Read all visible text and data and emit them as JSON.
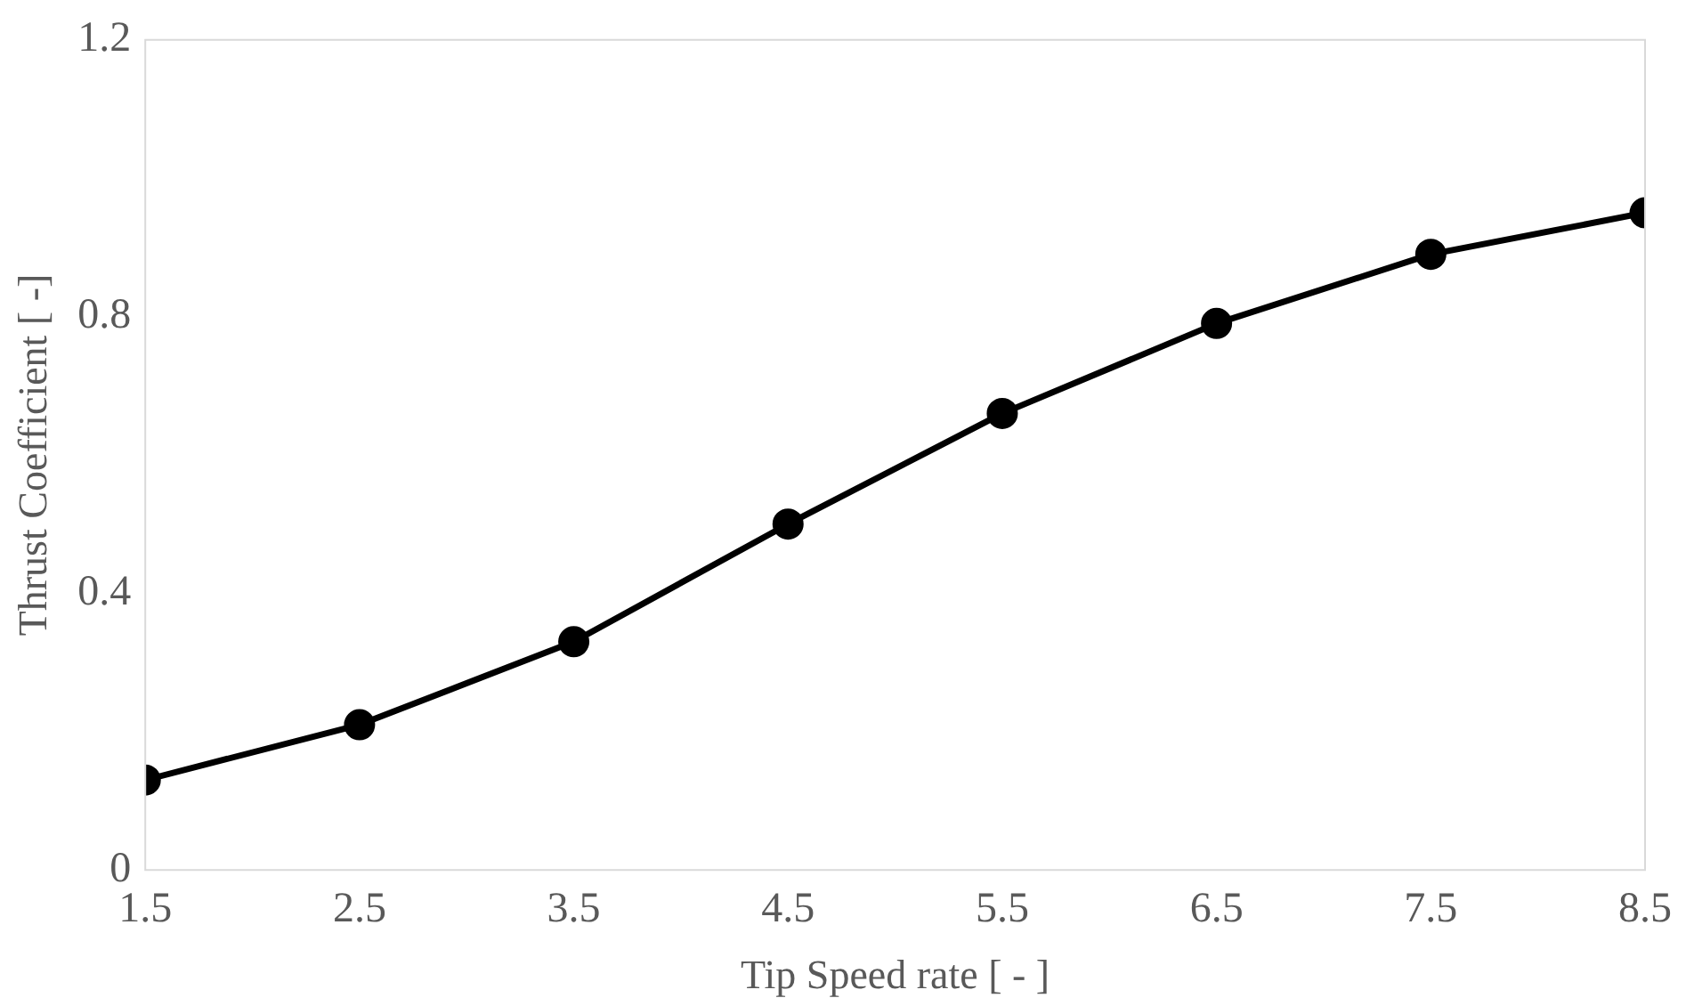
{
  "chart_data": {
    "type": "line",
    "xlabel": "Tip Speed rate [ - ]",
    "ylabel": "Thrust Coefficient [ -]",
    "x": [
      1.5,
      2.5,
      3.5,
      4.5,
      5.5,
      6.5,
      7.5,
      8.5
    ],
    "series": [
      {
        "color": "#000000",
        "values": [
          0.13,
          0.21,
          0.33,
          0.5,
          0.66,
          0.79,
          0.89,
          0.95
        ]
      }
    ],
    "xlim": [
      1.5,
      8.5
    ],
    "xticks": [
      1.5,
      2.5,
      3.5,
      4.5,
      5.5,
      6.5,
      7.5,
      8.5
    ],
    "ylim": [
      0,
      1.2
    ],
    "yticks": [
      0,
      0.4,
      0.8,
      1.2
    ],
    "grid": false,
    "legend": false,
    "marker": "circle",
    "line_style": "solid"
  }
}
